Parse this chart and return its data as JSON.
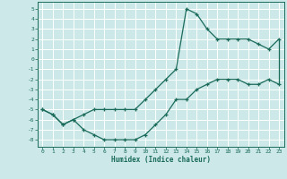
{
  "xlabel": "Humidex (Indice chaleur)",
  "bg_color": "#cce8e8",
  "grid_color": "#ffffff",
  "line_color": "#1a6b5a",
  "xlim": [
    -0.5,
    23.5
  ],
  "ylim": [
    -8.7,
    5.7
  ],
  "xticks": [
    0,
    1,
    2,
    3,
    4,
    5,
    6,
    7,
    8,
    9,
    10,
    11,
    12,
    13,
    14,
    15,
    16,
    17,
    18,
    19,
    20,
    21,
    22,
    23
  ],
  "yticks": [
    5,
    4,
    3,
    2,
    1,
    0,
    -1,
    -2,
    -3,
    -4,
    -5,
    -6,
    -7,
    -8
  ],
  "line1_x": [
    0,
    1,
    2,
    3,
    4,
    5,
    6,
    7,
    8,
    9,
    10,
    11,
    12,
    13,
    14,
    15,
    16,
    17,
    18,
    19,
    20,
    21,
    22,
    23
  ],
  "line1_y": [
    -5,
    -5.5,
    -6.5,
    -6,
    -7,
    -7.5,
    -8,
    -8,
    -8,
    -8,
    -7.5,
    -6.5,
    -5.5,
    -4,
    -4,
    -3,
    -2.5,
    -2,
    -2,
    -2,
    -2.5,
    -2.5,
    -2,
    -2.5
  ],
  "line2_x": [
    0,
    1,
    2,
    3,
    4,
    5,
    6,
    7,
    8,
    9,
    10,
    11,
    12,
    13,
    14,
    15,
    16,
    17,
    18,
    19,
    20,
    21,
    22,
    23
  ],
  "line2_y": [
    -5,
    -5.5,
    -6.5,
    -6,
    -5.5,
    -5,
    -5,
    -5,
    -5,
    -5,
    -4,
    -3,
    -2,
    -1,
    5,
    4.5,
    3,
    2,
    2,
    2,
    2,
    1.5,
    1,
    2
  ],
  "marker": "+"
}
